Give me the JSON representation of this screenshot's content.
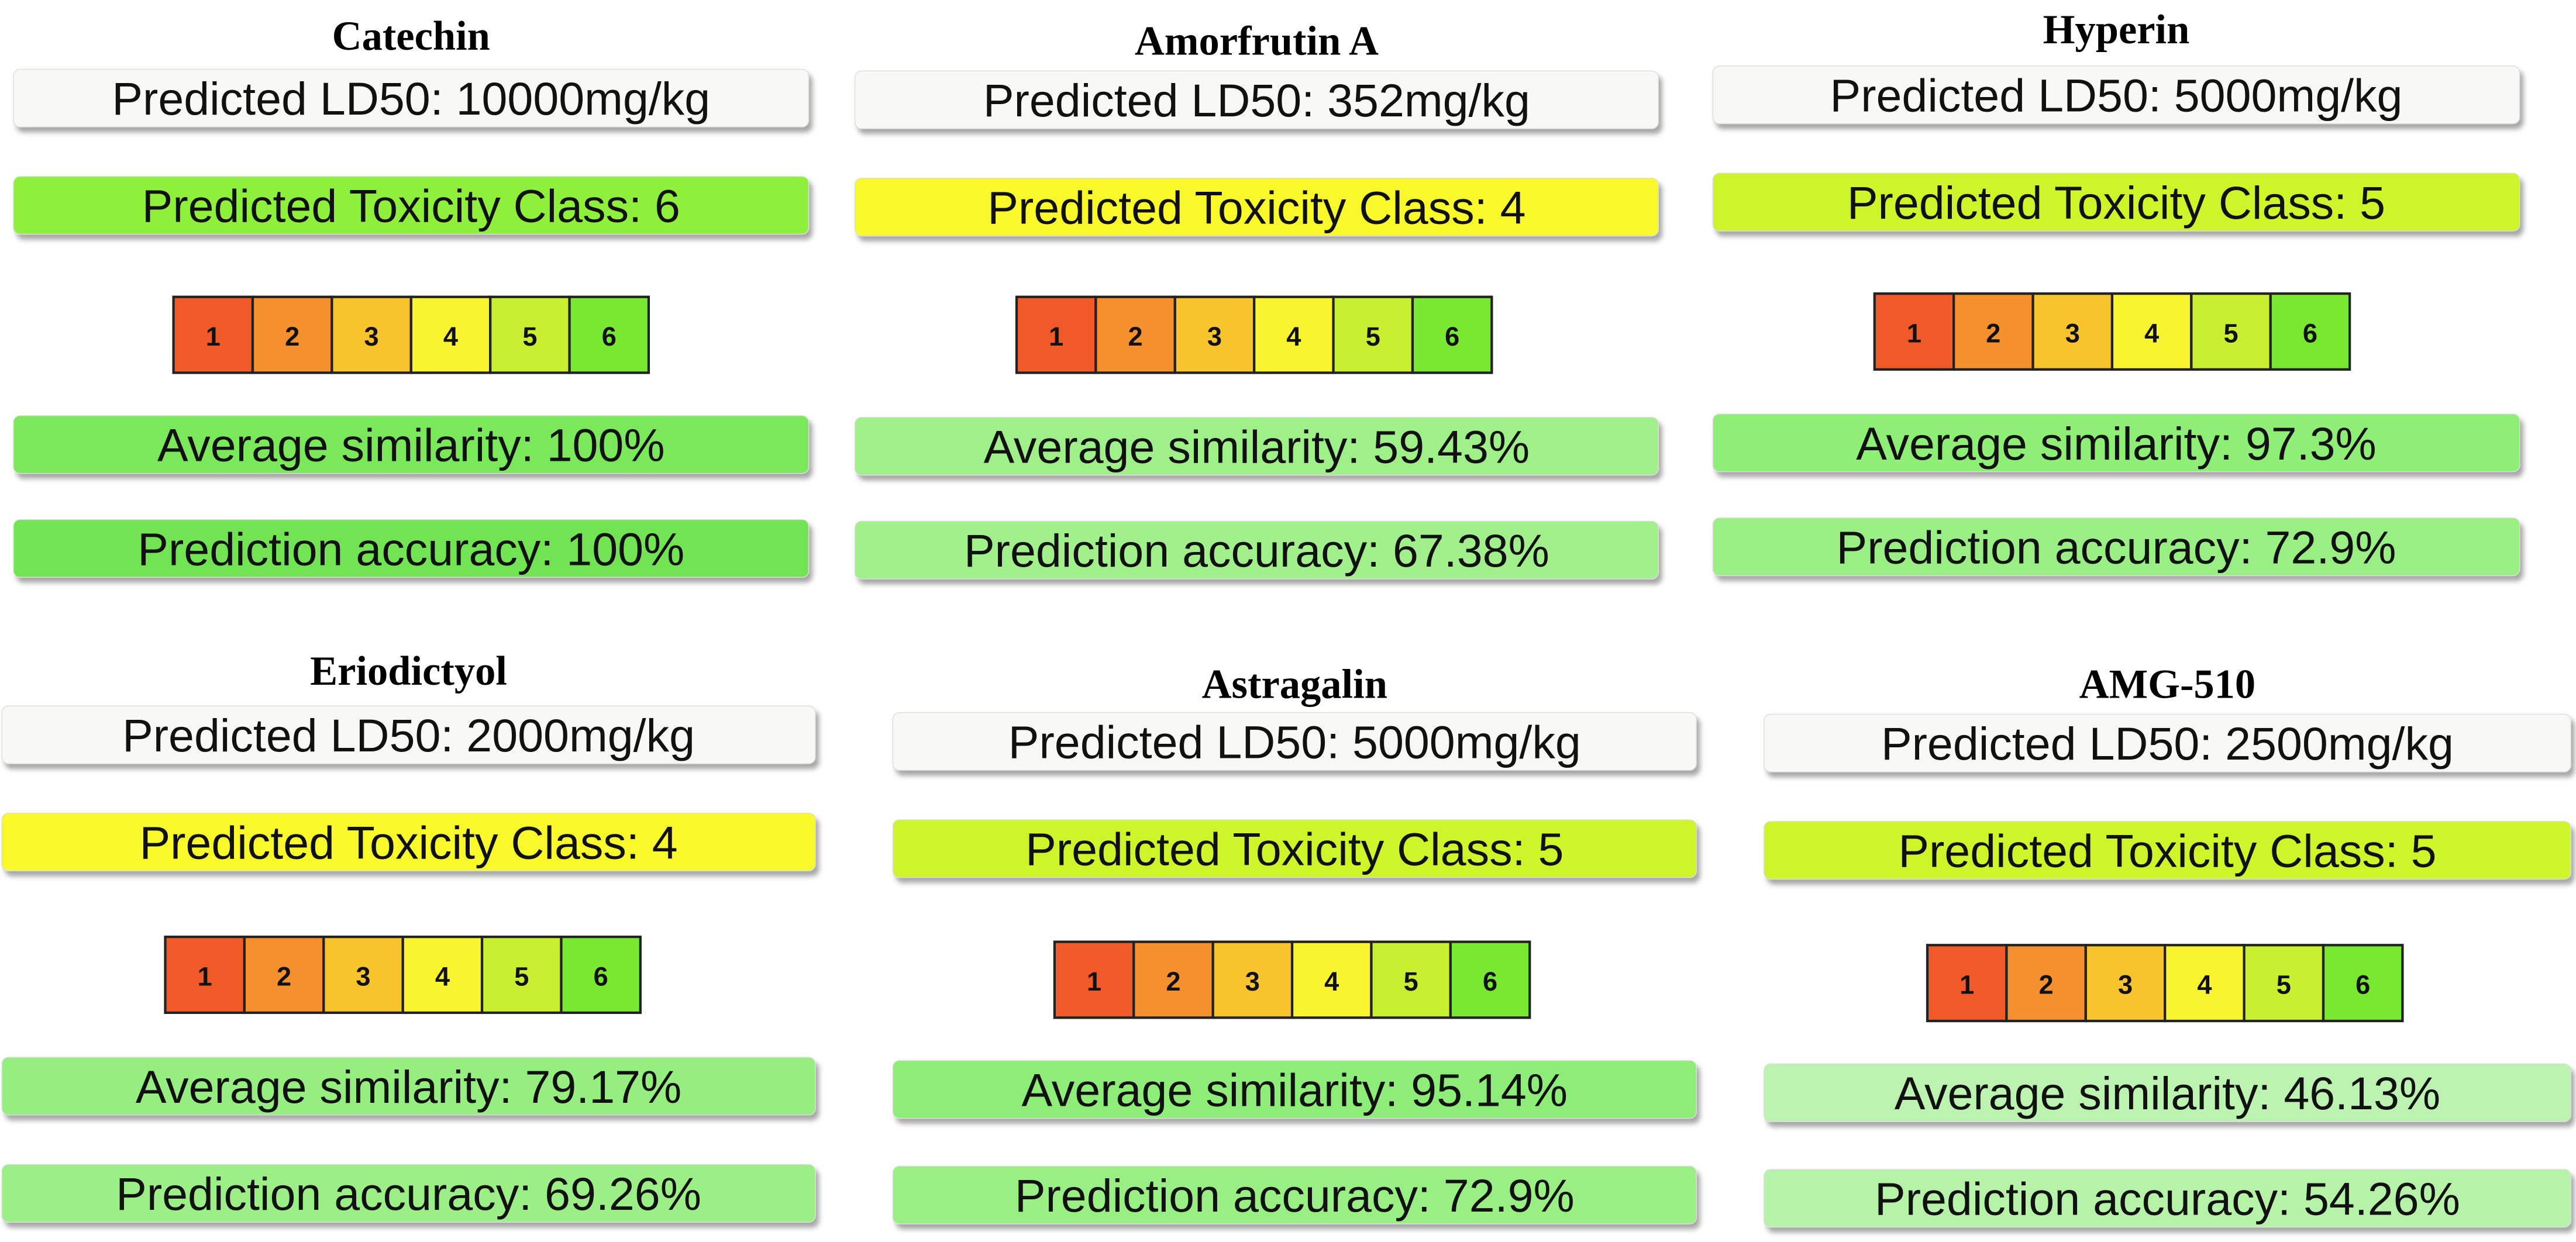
{
  "toxicity_scale": {
    "classes": [
      1,
      2,
      3,
      4,
      5,
      6
    ],
    "colors": [
      "#f05a28",
      "#f5902e",
      "#f8c42e",
      "#f8f530",
      "#c8f030",
      "#78e830"
    ]
  },
  "panels": [
    {
      "name": "Catechin",
      "ld50": "Predicted LD50: 10000mg/kg",
      "toxicity_class": "Predicted Toxicity Class: 6",
      "average_similarity": "Average similarity: 100%",
      "prediction_accuracy": "Prediction accuracy: 100%",
      "colors": [
        "#f8f8f6",
        "#8ef03a",
        "#7ae85a",
        "#72e452"
      ]
    },
    {
      "name": "Amorfrutin A",
      "ld50": "Predicted LD50: 352mg/kg",
      "toxicity_class": "Predicted Toxicity Class: 4",
      "average_similarity": "Average similarity: 59.43%",
      "prediction_accuracy": "Prediction accuracy: 67.38%",
      "colors": [
        "#f8f8f6",
        "#f8f82a",
        "#a0f08a",
        "#a2f08c"
      ]
    },
    {
      "name": "Hyperin",
      "ld50": "Predicted LD50: 5000mg/kg",
      "toxicity_class": "Predicted Toxicity Class: 5",
      "average_similarity": "Average similarity: 97.3%",
      "prediction_accuracy": "Prediction accuracy: 72.9%",
      "colors": [
        "#f8f8f6",
        "#cdf52a",
        "#8eee76",
        "#99ee84"
      ]
    },
    {
      "name": "Eriodictyol",
      "ld50": "Predicted LD50: 2000mg/kg",
      "toxicity_class": "Predicted Toxicity Class: 4",
      "average_similarity": "Average similarity: 79.17%",
      "prediction_accuracy": "Prediction accuracy: 69.26%",
      "colors": [
        "#f8f8f6",
        "#f8f82a",
        "#97ee80",
        "#9cee86"
      ]
    },
    {
      "name": "Astragalin",
      "ld50": "Predicted LD50: 5000mg/kg",
      "toxicity_class": "Predicted Toxicity Class: 5",
      "average_similarity": "Average similarity: 95.14%",
      "prediction_accuracy": "Prediction accuracy: 72.9%",
      "colors": [
        "#f8f8f6",
        "#cdf52a",
        "#8eec78",
        "#99ee84"
      ]
    },
    {
      "name": "AMG-510",
      "ld50": "Predicted LD50: 2500mg/kg",
      "toxicity_class": "Predicted Toxicity Class: 5",
      "average_similarity": "Average similarity: 46.13%",
      "prediction_accuracy": "Prediction accuracy: 54.26%",
      "colors": [
        "#f8f8f6",
        "#cdf52a",
        "#bdf3b0",
        "#b6f2a8"
      ]
    }
  ]
}
